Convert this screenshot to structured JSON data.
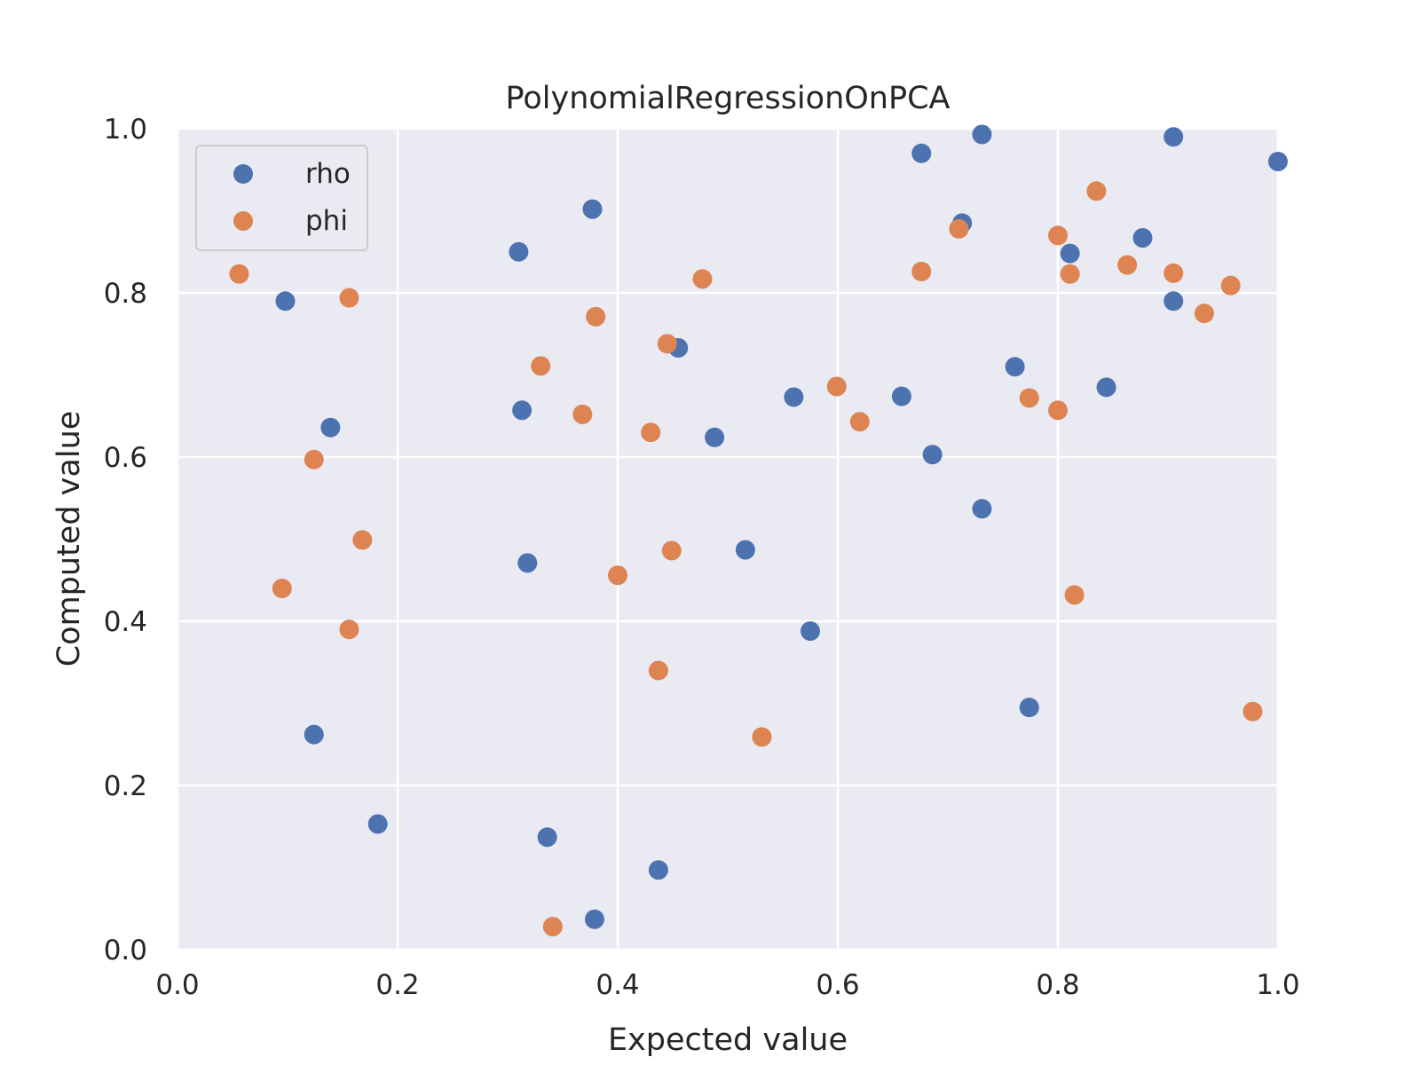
{
  "chart_data": {
    "type": "scatter",
    "title": "PolynomialRegressionOnPCA",
    "xlabel": "Expected value",
    "ylabel": "Computed value",
    "xlim": [
      0.0,
      1.0
    ],
    "ylim": [
      0.0,
      1.0
    ],
    "xticks": [
      "0.0",
      "0.2",
      "0.4",
      "0.6",
      "0.8",
      "1.0"
    ],
    "yticks": [
      "0.0",
      "0.2",
      "0.4",
      "0.6",
      "0.8",
      "1.0"
    ],
    "grid": true,
    "legend_position": "top-left",
    "series": [
      {
        "name": "rho",
        "color": "#4c72b0",
        "points": [
          [
            0.098,
            0.79
          ],
          [
            0.124,
            0.262
          ],
          [
            0.139,
            0.636
          ],
          [
            0.182,
            0.153
          ],
          [
            0.31,
            0.85
          ],
          [
            0.313,
            0.657
          ],
          [
            0.318,
            0.471
          ],
          [
            0.336,
            0.137
          ],
          [
            0.377,
            0.902
          ],
          [
            0.379,
            0.037
          ],
          [
            0.437,
            0.097
          ],
          [
            0.455,
            0.733
          ],
          [
            0.488,
            0.624
          ],
          [
            0.516,
            0.487
          ],
          [
            0.56,
            0.673
          ],
          [
            0.575,
            0.388
          ],
          [
            0.658,
            0.674
          ],
          [
            0.676,
            0.97
          ],
          [
            0.686,
            0.603
          ],
          [
            0.713,
            0.885
          ],
          [
            0.731,
            0.993
          ],
          [
            0.731,
            0.537
          ],
          [
            0.761,
            0.71
          ],
          [
            0.774,
            0.295
          ],
          [
            0.811,
            0.848
          ],
          [
            0.844,
            0.685
          ],
          [
            0.877,
            0.867
          ],
          [
            0.905,
            0.99
          ],
          [
            0.905,
            0.79
          ],
          [
            1.0,
            0.96
          ]
        ]
      },
      {
        "name": "phi",
        "color": "#dd8452",
        "points": [
          [
            0.056,
            0.823
          ],
          [
            0.095,
            0.44
          ],
          [
            0.124,
            0.597
          ],
          [
            0.156,
            0.794
          ],
          [
            0.156,
            0.39
          ],
          [
            0.168,
            0.499
          ],
          [
            0.33,
            0.711
          ],
          [
            0.341,
            0.028
          ],
          [
            0.368,
            0.652
          ],
          [
            0.38,
            0.771
          ],
          [
            0.4,
            0.456
          ],
          [
            0.43,
            0.63
          ],
          [
            0.437,
            0.34
          ],
          [
            0.445,
            0.738
          ],
          [
            0.449,
            0.486
          ],
          [
            0.477,
            0.817
          ],
          [
            0.531,
            0.259
          ],
          [
            0.599,
            0.686
          ],
          [
            0.62,
            0.643
          ],
          [
            0.676,
            0.826
          ],
          [
            0.71,
            0.878
          ],
          [
            0.774,
            0.672
          ],
          [
            0.8,
            0.87
          ],
          [
            0.8,
            0.657
          ],
          [
            0.811,
            0.823
          ],
          [
            0.815,
            0.432
          ],
          [
            0.835,
            0.924
          ],
          [
            0.863,
            0.834
          ],
          [
            0.905,
            0.824
          ],
          [
            0.933,
            0.775
          ],
          [
            0.957,
            0.809
          ],
          [
            0.977,
            0.29
          ]
        ]
      }
    ]
  }
}
